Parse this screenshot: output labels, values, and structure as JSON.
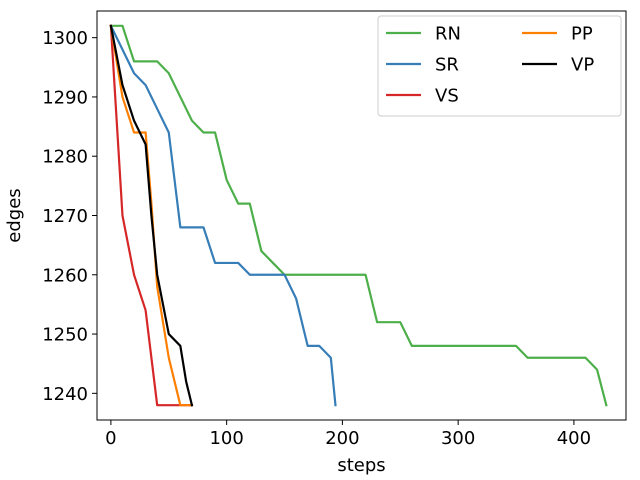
{
  "chart_data": {
    "type": "line",
    "xlabel": "steps",
    "ylabel": "edges",
    "xlim": [
      -12,
      445
    ],
    "ylim": [
      1235.5,
      1304.5
    ],
    "xticks": [
      0,
      100,
      200,
      300,
      400
    ],
    "yticks": [
      1240,
      1250,
      1260,
      1270,
      1280,
      1290,
      1300
    ],
    "grid": false,
    "legend": {
      "placement": "top-right",
      "columns": 2
    },
    "series": [
      {
        "name": "RN",
        "color": "#4daf4a",
        "points": [
          [
            0,
            1302
          ],
          [
            10,
            1302
          ],
          [
            20,
            1296
          ],
          [
            30,
            1296
          ],
          [
            40,
            1296
          ],
          [
            50,
            1294
          ],
          [
            60,
            1290
          ],
          [
            70,
            1286
          ],
          [
            80,
            1284
          ],
          [
            90,
            1284
          ],
          [
            100,
            1276
          ],
          [
            110,
            1272
          ],
          [
            120,
            1272
          ],
          [
            130,
            1264
          ],
          [
            140,
            1262
          ],
          [
            150,
            1260
          ],
          [
            160,
            1260
          ],
          [
            170,
            1260
          ],
          [
            180,
            1260
          ],
          [
            190,
            1260
          ],
          [
            200,
            1260
          ],
          [
            210,
            1260
          ],
          [
            220,
            1260
          ],
          [
            230,
            1252
          ],
          [
            240,
            1252
          ],
          [
            250,
            1252
          ],
          [
            260,
            1248
          ],
          [
            270,
            1248
          ],
          [
            280,
            1248
          ],
          [
            290,
            1248
          ],
          [
            300,
            1248
          ],
          [
            310,
            1248
          ],
          [
            320,
            1248
          ],
          [
            330,
            1248
          ],
          [
            340,
            1248
          ],
          [
            350,
            1248
          ],
          [
            360,
            1246
          ],
          [
            370,
            1246
          ],
          [
            380,
            1246
          ],
          [
            390,
            1246
          ],
          [
            400,
            1246
          ],
          [
            410,
            1246
          ],
          [
            420,
            1244
          ],
          [
            428,
            1238
          ]
        ]
      },
      {
        "name": "SR",
        "color": "#377eb8",
        "points": [
          [
            0,
            1302
          ],
          [
            10,
            1298
          ],
          [
            20,
            1294
          ],
          [
            30,
            1292
          ],
          [
            40,
            1288
          ],
          [
            50,
            1284
          ],
          [
            60,
            1268
          ],
          [
            70,
            1268
          ],
          [
            80,
            1268
          ],
          [
            90,
            1262
          ],
          [
            100,
            1262
          ],
          [
            110,
            1262
          ],
          [
            120,
            1260
          ],
          [
            130,
            1260
          ],
          [
            140,
            1260
          ],
          [
            150,
            1260
          ],
          [
            160,
            1256
          ],
          [
            170,
            1248
          ],
          [
            180,
            1248
          ],
          [
            190,
            1246
          ],
          [
            194,
            1238
          ]
        ]
      },
      {
        "name": "VS",
        "color": "#d62728",
        "points": [
          [
            0,
            1302
          ],
          [
            10,
            1270
          ],
          [
            20,
            1260
          ],
          [
            30,
            1254
          ],
          [
            35,
            1246
          ],
          [
            40,
            1238
          ],
          [
            50,
            1238
          ],
          [
            60,
            1238
          ],
          [
            70,
            1238
          ]
        ]
      },
      {
        "name": "PP",
        "color": "#ff7f00",
        "points": [
          [
            0,
            1302
          ],
          [
            10,
            1290
          ],
          [
            20,
            1284
          ],
          [
            30,
            1284
          ],
          [
            35,
            1272
          ],
          [
            40,
            1258
          ],
          [
            50,
            1246
          ],
          [
            60,
            1238
          ],
          [
            70,
            1238
          ]
        ]
      },
      {
        "name": "VP",
        "color": "#000000",
        "points": [
          [
            0,
            1302
          ],
          [
            10,
            1292
          ],
          [
            20,
            1286
          ],
          [
            30,
            1282
          ],
          [
            35,
            1270
          ],
          [
            40,
            1260
          ],
          [
            50,
            1250
          ],
          [
            60,
            1248
          ],
          [
            65,
            1242
          ],
          [
            70,
            1238
          ]
        ]
      }
    ]
  }
}
